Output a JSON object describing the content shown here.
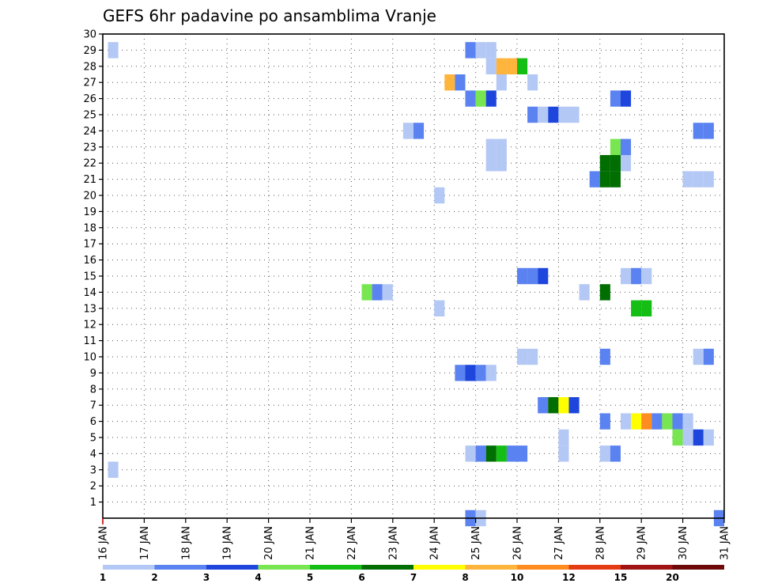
{
  "chart_data": {
    "type": "heatmap",
    "title": "GEFS 6hr padavine po ansamblima Vranje",
    "x_labels": [
      "16 JAN",
      "17 JAN",
      "18 JAN",
      "19 JAN",
      "20 JAN",
      "21 JAN",
      "22 JAN",
      "23 JAN",
      "24 JAN",
      "25 JAN",
      "26 JAN",
      "27 JAN",
      "28 JAN",
      "29 JAN",
      "30 JAN",
      "31 JAN"
    ],
    "y_labels": [
      "1",
      "2",
      "3",
      "4",
      "5",
      "6",
      "7",
      "8",
      "9",
      "10",
      "11",
      "12",
      "13",
      "14",
      "15",
      "16",
      "17",
      "18",
      "19",
      "20",
      "21",
      "22",
      "23",
      "24",
      "25",
      "26",
      "27",
      "28",
      "29",
      "30"
    ],
    "x_unit": "6-hour steps from 16 JAN 00Z",
    "grid": true,
    "colorbar": {
      "labels": [
        "1",
        "2",
        "3",
        "4",
        "5",
        "6",
        "7",
        "8",
        "10",
        "12",
        "15",
        "20"
      ],
      "colors": [
        "#b4c8f5",
        "#5a82f0",
        "#1e46dc",
        "#78e650",
        "#14be14",
        "#006e00",
        "#ffff00",
        "#ffb43c",
        "#ff8c1e",
        "#e63c14",
        "#a01414",
        "#6e0a0a"
      ]
    },
    "cells": [
      {
        "x": 0.5,
        "y": 29,
        "c": 0
      },
      {
        "x": 0.5,
        "y": 3,
        "c": 0
      },
      {
        "x": 35,
        "y": 29,
        "c": 1
      },
      {
        "x": 36,
        "y": 29,
        "c": 0
      },
      {
        "x": 37,
        "y": 29,
        "c": 0
      },
      {
        "x": 37,
        "y": 28,
        "c": 0
      },
      {
        "x": 38,
        "y": 28,
        "c": 7
      },
      {
        "x": 39,
        "y": 28,
        "c": 7
      },
      {
        "x": 40,
        "y": 28,
        "c": 4
      },
      {
        "x": 33,
        "y": 27,
        "c": 7
      },
      {
        "x": 34,
        "y": 27,
        "c": 1
      },
      {
        "x": 38,
        "y": 27,
        "c": 0
      },
      {
        "x": 41,
        "y": 27,
        "c": 0
      },
      {
        "x": 35,
        "y": 26,
        "c": 1
      },
      {
        "x": 36,
        "y": 26,
        "c": 3
      },
      {
        "x": 37,
        "y": 26,
        "c": 2
      },
      {
        "x": 49,
        "y": 26,
        "c": 1
      },
      {
        "x": 50,
        "y": 26,
        "c": 2
      },
      {
        "x": 41,
        "y": 25,
        "c": 1
      },
      {
        "x": 42,
        "y": 25,
        "c": 0
      },
      {
        "x": 43,
        "y": 25,
        "c": 2
      },
      {
        "x": 44,
        "y": 25,
        "c": 0
      },
      {
        "x": 45,
        "y": 25,
        "c": 0
      },
      {
        "x": 29,
        "y": 24,
        "c": 0
      },
      {
        "x": 30,
        "y": 24,
        "c": 1
      },
      {
        "x": 57,
        "y": 24,
        "c": 1
      },
      {
        "x": 58,
        "y": 24,
        "c": 1
      },
      {
        "x": 37,
        "y": 23,
        "c": 0
      },
      {
        "x": 38,
        "y": 23,
        "c": 0
      },
      {
        "x": 49,
        "y": 23,
        "c": 3
      },
      {
        "x": 50,
        "y": 23,
        "c": 1
      },
      {
        "x": 37,
        "y": 22,
        "c": 0
      },
      {
        "x": 38,
        "y": 22,
        "c": 0
      },
      {
        "x": 48,
        "y": 22,
        "c": 5
      },
      {
        "x": 49,
        "y": 22,
        "c": 5
      },
      {
        "x": 50,
        "y": 22,
        "c": 0
      },
      {
        "x": 47,
        "y": 21,
        "c": 1
      },
      {
        "x": 48,
        "y": 21,
        "c": 5
      },
      {
        "x": 49,
        "y": 21,
        "c": 5
      },
      {
        "x": 56,
        "y": 21,
        "c": 0
      },
      {
        "x": 57,
        "y": 21,
        "c": 0
      },
      {
        "x": 58,
        "y": 21,
        "c": 0
      },
      {
        "x": 32,
        "y": 20,
        "c": 0
      },
      {
        "x": 40,
        "y": 15,
        "c": 1
      },
      {
        "x": 41,
        "y": 15,
        "c": 1
      },
      {
        "x": 42,
        "y": 15,
        "c": 2
      },
      {
        "x": 50,
        "y": 15,
        "c": 0
      },
      {
        "x": 51,
        "y": 15,
        "c": 1
      },
      {
        "x": 52,
        "y": 15,
        "c": 0
      },
      {
        "x": 25,
        "y": 14,
        "c": 3
      },
      {
        "x": 26,
        "y": 14,
        "c": 1
      },
      {
        "x": 27,
        "y": 14,
        "c": 0
      },
      {
        "x": 46,
        "y": 14,
        "c": 0
      },
      {
        "x": 48,
        "y": 14,
        "c": 5
      },
      {
        "x": 32,
        "y": 13,
        "c": 0
      },
      {
        "x": 51,
        "y": 13,
        "c": 4
      },
      {
        "x": 52,
        "y": 13,
        "c": 4
      },
      {
        "x": 40,
        "y": 10,
        "c": 0
      },
      {
        "x": 41,
        "y": 10,
        "c": 0
      },
      {
        "x": 48,
        "y": 10,
        "c": 1
      },
      {
        "x": 57,
        "y": 10,
        "c": 0
      },
      {
        "x": 58,
        "y": 10,
        "c": 1
      },
      {
        "x": 34,
        "y": 9,
        "c": 1
      },
      {
        "x": 35,
        "y": 9,
        "c": 2
      },
      {
        "x": 36,
        "y": 9,
        "c": 1
      },
      {
        "x": 37,
        "y": 9,
        "c": 0
      },
      {
        "x": 42,
        "y": 7,
        "c": 1
      },
      {
        "x": 43,
        "y": 7,
        "c": 5
      },
      {
        "x": 44,
        "y": 7,
        "c": 6
      },
      {
        "x": 45,
        "y": 7,
        "c": 2
      },
      {
        "x": 48,
        "y": 6,
        "c": 1
      },
      {
        "x": 50,
        "y": 6,
        "c": 0
      },
      {
        "x": 51,
        "y": 6,
        "c": 6
      },
      {
        "x": 52,
        "y": 6,
        "c": 8
      },
      {
        "x": 53,
        "y": 6,
        "c": 1
      },
      {
        "x": 54,
        "y": 6,
        "c": 3
      },
      {
        "x": 55,
        "y": 6,
        "c": 1
      },
      {
        "x": 56,
        "y": 6,
        "c": 0
      },
      {
        "x": 44,
        "y": 5,
        "c": 0
      },
      {
        "x": 55,
        "y": 5,
        "c": 3
      },
      {
        "x": 56,
        "y": 5,
        "c": 0
      },
      {
        "x": 57,
        "y": 5,
        "c": 2
      },
      {
        "x": 58,
        "y": 5,
        "c": 0
      },
      {
        "x": 35,
        "y": 4,
        "c": 0
      },
      {
        "x": 36,
        "y": 4,
        "c": 1
      },
      {
        "x": 37,
        "y": 4,
        "c": 5
      },
      {
        "x": 38,
        "y": 4,
        "c": 4
      },
      {
        "x": 39,
        "y": 4,
        "c": 1
      },
      {
        "x": 40,
        "y": 4,
        "c": 1
      },
      {
        "x": 44,
        "y": 4,
        "c": 0
      },
      {
        "x": 48,
        "y": 4,
        "c": 0
      },
      {
        "x": 49,
        "y": 4,
        "c": 1
      },
      {
        "x": 35,
        "y": 0,
        "c": 1
      },
      {
        "x": 36,
        "y": 0,
        "c": 0
      },
      {
        "x": 59,
        "y": 0,
        "c": 1
      }
    ]
  }
}
